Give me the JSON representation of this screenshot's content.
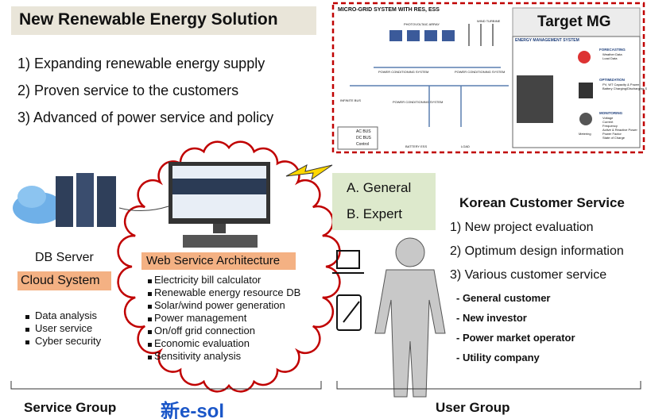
{
  "header": {
    "title": "New Renewable Energy Solution"
  },
  "goals": [
    "1) Expanding renewable energy supply",
    "2) Proven service to the customers",
    "3) Advanced of power service and policy"
  ],
  "microgrid": {
    "title": "MICRO-GRID SYSTEM WITH RES, ESS",
    "target": "Target MG",
    "labels": [
      "PHOTOVOLTAIC ARRAY",
      "WIND TURBINE",
      "POWER CONDITIONING SYSTEM",
      "POWER CONDITIONING SYSTEM",
      "INFINITE BUS",
      "POWER CONDITIONING SYSTEM",
      "BATTERY ESS",
      "LOAD"
    ],
    "legend": [
      "AC BUS",
      "DC BUS",
      "Control"
    ],
    "ems": {
      "title": "ENERGY MANAGEMENT SYSTEM",
      "sections": [
        {
          "name": "FORECASTING",
          "items": [
            "Weather Data",
            "Load Data"
          ]
        },
        {
          "name": "OPTIMIZATION",
          "items": [
            "PV, WT Capacity & Power",
            "Battery Charging/Discharging Scheduling"
          ]
        },
        {
          "name": "MONITORING",
          "items": [
            "Voltage",
            "Current",
            "Frequency",
            "Active & Reactive Power",
            "Power Factor",
            "State of Charge"
          ]
        }
      ],
      "metering": "Metering"
    }
  },
  "modes": [
    "A. General",
    "B. Expert"
  ],
  "service": {
    "db": "DB Server",
    "cloud": "Cloud System",
    "features": [
      "Data analysis",
      "User service",
      "Cyber security"
    ],
    "web": "Web Service Architecture",
    "web_features": [
      "Electricity bill calculator",
      "Renewable energy resource DB",
      "Solar/wind power generation",
      "Power management",
      "On/off grid connection",
      "Economic evaluation",
      "Sensitivity analysis"
    ]
  },
  "customer": {
    "title": "Korean Customer Service",
    "items": [
      "1) New project evaluation",
      "2) Optimum design information",
      "3) Various customer service"
    ],
    "customers": [
      "- General customer",
      "- New investor",
      "- Power market operator",
      "- Utility company"
    ]
  },
  "footer": {
    "service_group": "Service Group",
    "logo": "新e-sol",
    "user_group": "User Group"
  }
}
